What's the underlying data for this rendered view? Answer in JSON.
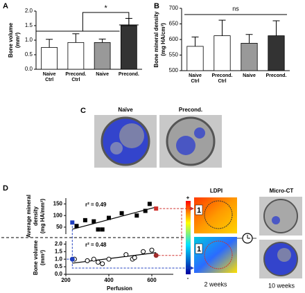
{
  "panel_labels": [
    "A",
    "B",
    "C",
    "D"
  ],
  "chart_data": [
    {
      "type": "bar",
      "y_label": [
        "Bone volume",
        "(mm³)"
      ],
      "categories": [
        "Naive Ctrl",
        "Precond. Ctrl",
        "Naive",
        "Precond."
      ],
      "values": [
        0.75,
        0.92,
        0.92,
        1.5
      ],
      "errors": [
        0.28,
        0.3,
        0.12,
        0.25
      ],
      "colors": [
        "#ffffff",
        "#ffffff",
        "#999999",
        "#333333"
      ],
      "ylim": [
        0,
        2
      ],
      "yticks": [
        {
          "value": 0,
          "label": "0.0"
        },
        0.5,
        {
          "value": 1,
          "label": "1.0"
        },
        1.5,
        {
          "value": 2,
          "label": "2.0"
        }
      ],
      "annotation": "*"
    },
    {
      "type": "bar",
      "y_label": [
        "Bone mineral density",
        "(mg HA/cm³)"
      ],
      "categories": [
        "Naive Ctrl",
        "Precond. Ctrl",
        "Naive",
        "Precond."
      ],
      "values": [
        578,
        612,
        588,
        612
      ],
      "errors": [
        30,
        50,
        28,
        48
      ],
      "colors": [
        "#ffffff",
        "#ffffff",
        "#999999",
        "#333333"
      ],
      "ylim": [
        500,
        700
      ],
      "yticks": [
        500,
        550,
        600,
        650,
        700
      ],
      "annotation": "ns"
    },
    {
      "type": "scatter",
      "x_label": "Perfusion",
      "xlim": [
        200,
        700
      ],
      "xticks": [
        200,
        400,
        600
      ],
      "subplots": [
        {
          "y_label": [
            "Average mineral",
            "density",
            "(mg HA/mm³)"
          ],
          "ylim": [
            20,
            175
          ],
          "yticks": [
            50,
            100,
            150
          ],
          "annotation": "r² = 0.49",
          "series": [
            {
              "marker": "square",
              "color": "#000000",
              "x": [
                250,
                290,
                330,
                350,
                370,
                400,
                460,
                530,
                570,
                590
              ],
              "values": [
                55,
                80,
                75,
                40,
                40,
                90,
                110,
                100,
                120,
                150
              ]
            },
            {
              "marker": "square",
              "color": "#1f3fbf",
              "x": [
                230
              ],
              "values": [
                70
              ]
            },
            {
              "marker": "square",
              "color": "#d0312d",
              "x": [
                620
              ],
              "values": [
                130
              ]
            }
          ]
        },
        {
          "y_label": [
            "Bone volume",
            "(mm³)"
          ],
          "ylim": [
            0,
            2.2
          ],
          "yticks": [
            {
              "value": 0,
              "label": "0.0"
            },
            0.5,
            {
              "value": 1,
              "label": "1.0"
            },
            1.5,
            {
              "value": 2,
              "label": "2.0"
            }
          ],
          "annotation": "r² = 0.48",
          "series": [
            {
              "marker": "circle",
              "color": "#ffffff",
              "x": [
                240,
                300,
                330,
                350,
                370,
                400,
                480,
                510,
                520,
                560,
                600
              ],
              "values": [
                1.0,
                0.9,
                1.0,
                0.8,
                0.7,
                1.0,
                1.3,
                1.0,
                1.1,
                1.5,
                1.6
              ]
            },
            {
              "marker": "circle",
              "color": "#1f3fbf",
              "x": [
                230
              ],
              "values": [
                1.0
              ]
            },
            {
              "marker": "circle",
              "color": "#9c2a2a",
              "x": [
                620
              ],
              "values": [
                1.25
              ]
            }
          ]
        }
      ]
    }
  ],
  "panel_c": {
    "labels": [
      "Naïve",
      "Precond."
    ]
  },
  "ldpi": {
    "title": "LDPI",
    "scale": [
      "+",
      "-"
    ],
    "number": "1",
    "caption": "2 weeks"
  },
  "micro_ct": {
    "title": "Micro-CT",
    "caption": "10 weeks"
  }
}
